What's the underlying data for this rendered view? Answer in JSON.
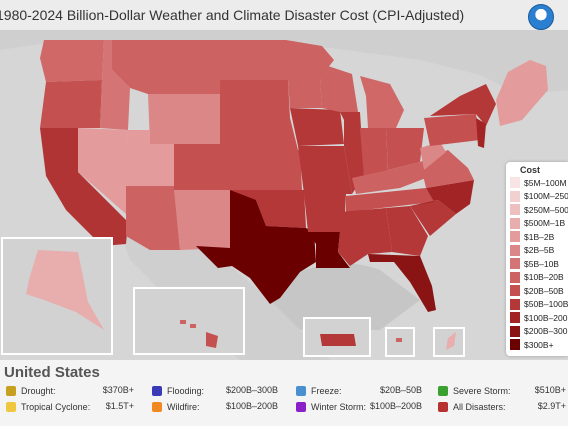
{
  "title": "1980-2024 Billion-Dollar Weather and Climate Disaster Cost (CPI-Adjusted)",
  "logo": "noaa-logo",
  "legend": {
    "title": "Cost",
    "items": [
      {
        "label": "$5M–100M",
        "color": "#f8e4e4"
      },
      {
        "label": "$100M–250M",
        "color": "#f3d0d0"
      },
      {
        "label": "$250M–500M",
        "color": "#eebfbf"
      },
      {
        "label": "$500M–1B",
        "color": "#e8adad"
      },
      {
        "label": "$1B–2B",
        "color": "#e39b9b"
      },
      {
        "label": "$2B–5B",
        "color": "#dc8787"
      },
      {
        "label": "$5B–10B",
        "color": "#d57474"
      },
      {
        "label": "$10B–20B",
        "color": "#cd6262"
      },
      {
        "label": "$20B–50B",
        "color": "#c45050"
      },
      {
        "label": "$50B–100B",
        "color": "#b53838"
      },
      {
        "label": "$100B–200B",
        "color": "#a32424"
      },
      {
        "label": "$200B–300B",
        "color": "#8a1414"
      },
      {
        "label": "$300B+",
        "color": "#6b0000"
      }
    ]
  },
  "summary": {
    "country": "United States",
    "disasters": [
      {
        "name": "Drought:",
        "value": "$370B+",
        "color": "#c8a020"
      },
      {
        "name": "Flooding:",
        "value": "$200B–300B",
        "color": "#3a3ab8"
      },
      {
        "name": "Freeze:",
        "value": "$20B–50B",
        "color": "#4a90d0"
      },
      {
        "name": "Severe Storm:",
        "value": "$510B+",
        "color": "#3aa030"
      },
      {
        "name": "Tropical Cyclone:",
        "value": "$1.5T+",
        "color": "#f0c840"
      },
      {
        "name": "Wildfire:",
        "value": "$100B–200B",
        "color": "#f08a20"
      },
      {
        "name": "Winter Storm:",
        "value": "$100B–200B",
        "color": "#8a20c8"
      },
      {
        "name": "All Disasters:",
        "value": "$2.9T+",
        "color": "#b83030"
      }
    ]
  }
}
